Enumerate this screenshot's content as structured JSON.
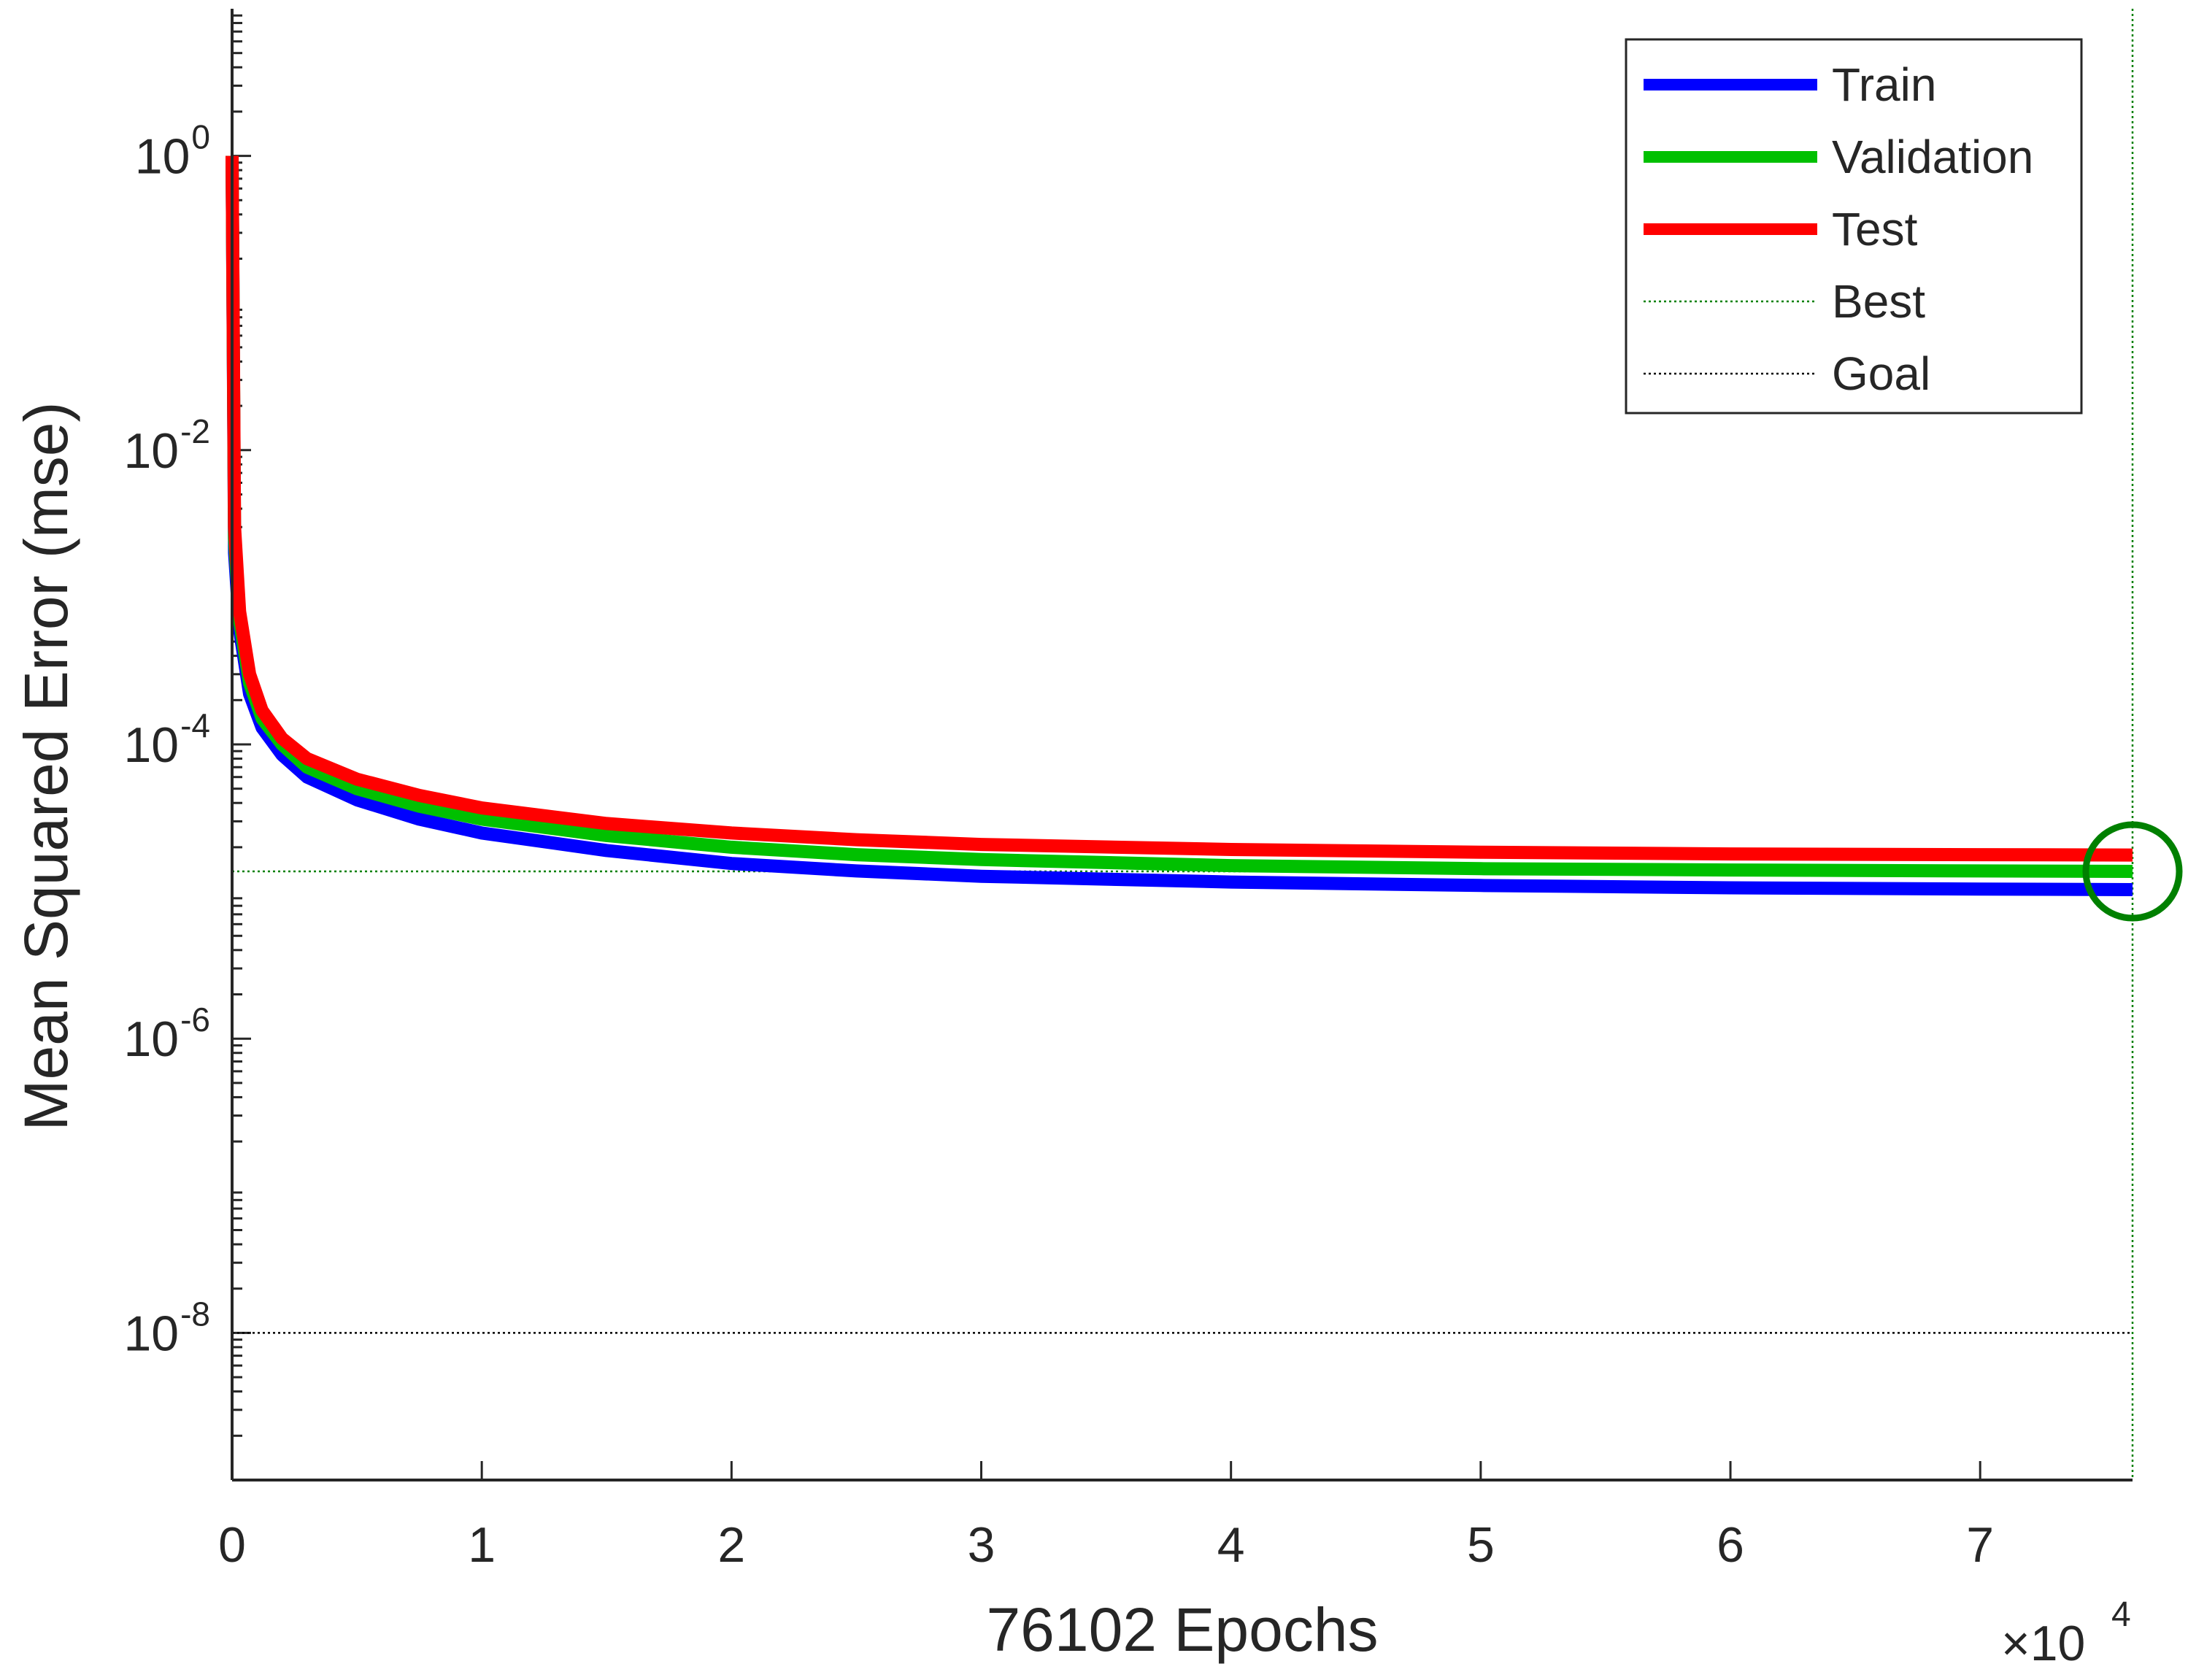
{
  "chart_data": {
    "type": "line",
    "yscale": "log",
    "xlabel": "76102 Epochs",
    "ylabel": "Mean Squared Error  (mse)",
    "x_multiplier": "×10",
    "x_multiplier_exp": "4",
    "xlim": [
      0,
      76102
    ],
    "ylim": [
      1e-09,
      10
    ],
    "x_ticks": [
      0,
      10000,
      20000,
      30000,
      40000,
      50000,
      60000,
      70000
    ],
    "x_tick_labels": [
      "0",
      "1",
      "2",
      "3",
      "4",
      "5",
      "6",
      "7"
    ],
    "y_ticks": [
      1e-08,
      1e-06,
      0.0001,
      0.01,
      1
    ],
    "y_tick_labels": [
      {
        "base": "10",
        "exp": "-8"
      },
      {
        "base": "10",
        "exp": "-6"
      },
      {
        "base": "10",
        "exp": "-4"
      },
      {
        "base": "10",
        "exp": "-2"
      },
      {
        "base": "10",
        "exp": "0"
      }
    ],
    "series": [
      {
        "name": "Train",
        "color": "#0000ff",
        "x": [
          0,
          100,
          300,
          700,
          1200,
          2000,
          3000,
          5000,
          7500,
          10000,
          15000,
          20000,
          25000,
          30000,
          40000,
          50000,
          60000,
          70000,
          76102
        ],
        "y": [
          1.0,
          0.002,
          0.0006,
          0.00022,
          0.00013,
          8.5e-05,
          6e-05,
          4.2e-05,
          3.1e-05,
          2.5e-05,
          1.9e-05,
          1.55e-05,
          1.38e-05,
          1.27e-05,
          1.16e-05,
          1.1e-05,
          1.06e-05,
          1.04e-05,
          1.03e-05
        ]
      },
      {
        "name": "Validation",
        "color": "#00c000",
        "x": [
          0,
          100,
          300,
          700,
          1200,
          2000,
          3000,
          5000,
          7500,
          10000,
          15000,
          20000,
          25000,
          30000,
          40000,
          50000,
          60000,
          70000,
          76102
        ],
        "y": [
          1.0,
          0.0025,
          0.0007,
          0.00026,
          0.00015,
          0.0001,
          7e-05,
          5e-05,
          3.8e-05,
          3.1e-05,
          2.4e-05,
          2e-05,
          1.78e-05,
          1.65e-05,
          1.5e-05,
          1.43e-05,
          1.4e-05,
          1.38e-05,
          1.37e-05
        ]
      },
      {
        "name": "Test",
        "color": "#ff0000",
        "x": [
          0,
          100,
          300,
          700,
          1200,
          2000,
          3000,
          5000,
          7500,
          10000,
          15000,
          20000,
          25000,
          30000,
          40000,
          50000,
          60000,
          70000,
          76102
        ],
        "y": [
          1.0,
          0.003,
          0.0008,
          0.0003,
          0.00017,
          0.00011,
          8e-05,
          5.8e-05,
          4.5e-05,
          3.7e-05,
          2.9e-05,
          2.5e-05,
          2.25e-05,
          2.09e-05,
          1.93e-05,
          1.85e-05,
          1.8e-05,
          1.78e-05,
          1.77e-05
        ]
      }
    ],
    "best": {
      "label": "Best",
      "epoch": 76102,
      "mse": 1.37e-05,
      "color": "#008000"
    },
    "goal": {
      "label": "Goal",
      "mse": 1e-08,
      "color": "#000000"
    },
    "legend": {
      "position": "top-right",
      "entries": [
        {
          "label": "Train",
          "color": "#0000ff",
          "style": "thick"
        },
        {
          "label": "Validation",
          "color": "#00c000",
          "style": "thick"
        },
        {
          "label": "Test",
          "color": "#ff0000",
          "style": "thick"
        },
        {
          "label": "Best",
          "color": "#008000",
          "style": "dotted"
        },
        {
          "label": "Goal",
          "color": "#000000",
          "style": "dotted"
        }
      ]
    }
  }
}
